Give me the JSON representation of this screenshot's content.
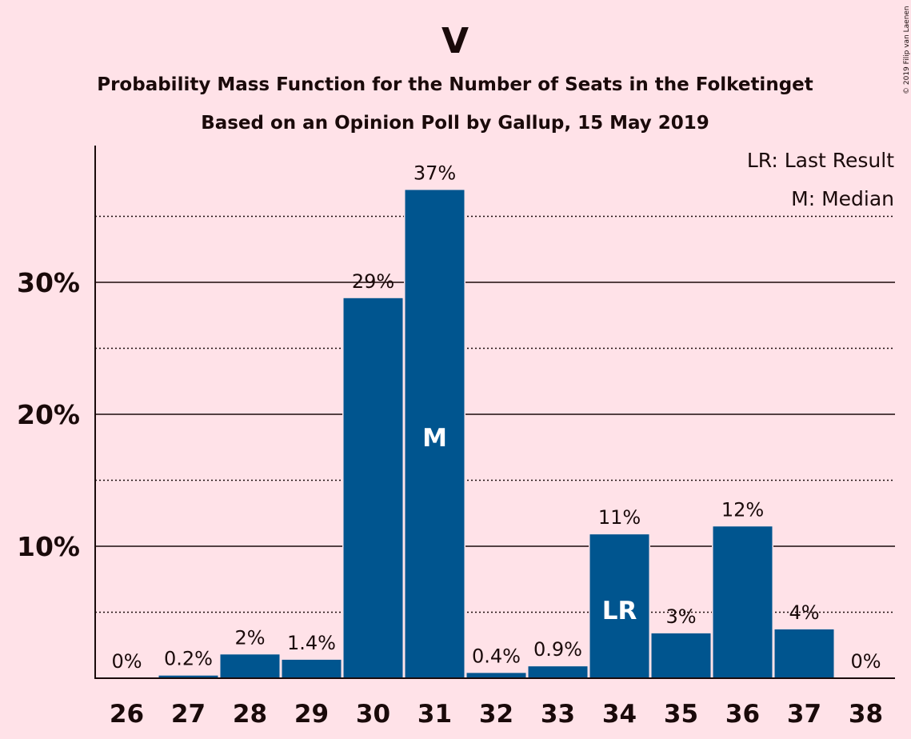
{
  "chart_data": {
    "type": "bar",
    "title": "V",
    "subtitle": "Probability Mass Function for the Number of Seats in the Folketinget",
    "subtitle2": "Based on an Opinion Poll by Gallup, 15 May 2019",
    "copyright": "© 2019 Filip van Laenen",
    "legend": {
      "placement": "top-right",
      "lr": "LR: Last Result",
      "m": "M: Median"
    },
    "categories": [
      "26",
      "27",
      "28",
      "29",
      "30",
      "31",
      "32",
      "33",
      "34",
      "35",
      "36",
      "37",
      "38"
    ],
    "values": [
      0,
      0.2,
      1.8,
      1.4,
      28.8,
      37.0,
      0.4,
      0.9,
      10.9,
      3.4,
      11.5,
      3.7,
      0
    ],
    "value_labels": [
      "0%",
      "0.2%",
      "2%",
      "1.4%",
      "29%",
      "37%",
      "0.4%",
      "0.9%",
      "11%",
      "3%",
      "12%",
      "4%",
      "0%"
    ],
    "bar_markers": {
      "31": "M",
      "34": "LR"
    },
    "yticks": [
      10,
      20,
      30
    ],
    "ytick_labels": [
      "10%",
      "20%",
      "30%"
    ],
    "minor_grid": [
      5,
      15,
      25,
      35
    ],
    "ylim": [
      0,
      40
    ],
    "bar_color": "#00558F",
    "background": "#FFE2E8"
  }
}
